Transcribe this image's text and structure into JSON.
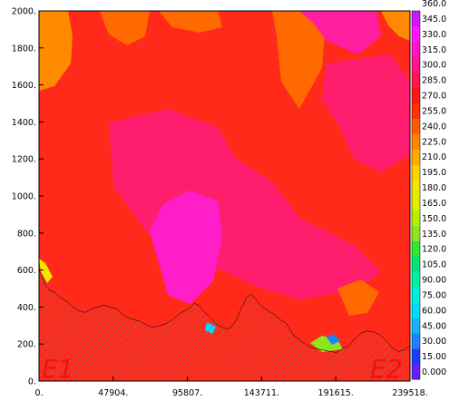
{
  "chart_data": {
    "type": "heatmap",
    "title": "",
    "xlabel": "",
    "ylabel": "",
    "x_ticks": [
      "0.",
      "47904.",
      "95807.",
      "143711.",
      "191615.",
      "239518."
    ],
    "x_tick_values": [
      0,
      47904,
      95807,
      143711,
      191615,
      239518
    ],
    "y_ticks": [
      "0.",
      "200.",
      "400.",
      "600.",
      "800.",
      "1000.",
      "1200.",
      "1400.",
      "1600.",
      "1800.",
      "2000."
    ],
    "y_tick_values": [
      0,
      200,
      400,
      600,
      800,
      1000,
      1200,
      1400,
      1600,
      1800,
      2000
    ],
    "xlim": [
      0,
      239518
    ],
    "ylim": [
      0,
      2000
    ],
    "colorbar": {
      "labels": [
        "0.000",
        "15.00",
        "30.00",
        "45.00",
        "60.00",
        "75.00",
        "90.00",
        "105.0",
        "120.0",
        "135.0",
        "150.0",
        "165.0",
        "180.0",
        "195.0",
        "210.0",
        "225.0",
        "240.0",
        "255.0",
        "270.0",
        "285.0",
        "300.0",
        "315.0",
        "330.0",
        "345.0",
        "360.0"
      ],
      "values": [
        0,
        15,
        30,
        45,
        60,
        75,
        90,
        105,
        120,
        135,
        150,
        165,
        180,
        195,
        210,
        225,
        240,
        255,
        270,
        285,
        300,
        315,
        330,
        345,
        360
      ],
      "colors": [
        "#6a1eff",
        "#1e3cff",
        "#1e82ff",
        "#14b4ff",
        "#00dcff",
        "#00f0dc",
        "#00f0a0",
        "#00e678",
        "#32e632",
        "#8ce61e",
        "#b4f000",
        "#dcf000",
        "#f0e600",
        "#ffd200",
        "#ffaa00",
        "#ff8200",
        "#ff5a00",
        "#ff3200",
        "#ff1414",
        "#ff1450",
        "#ff148c",
        "#ff14c8",
        "#ff14ff",
        "#d214ff"
      ]
    },
    "terrain": {
      "x": [
        0,
        2000,
        4000,
        7000,
        10000,
        14000,
        18000,
        22000,
        26000,
        30000,
        34000,
        38000,
        42000,
        46000,
        50000,
        54000,
        58000,
        62000,
        66000,
        70000,
        74000,
        78000,
        82000,
        86000,
        90000,
        94000,
        98000,
        100000,
        103000,
        106000,
        110000,
        114000,
        118000,
        122000,
        125000,
        128000,
        131000,
        134000,
        137000,
        140000,
        144000,
        148000,
        152000,
        156000,
        160000,
        164000,
        170000,
        176000,
        182000,
        188000,
        192000,
        196000,
        200000,
        204000,
        208000,
        212000,
        216000,
        220000,
        224000,
        228000,
        232000,
        236000,
        239518
      ],
      "y": [
        600,
        570,
        520,
        490,
        480,
        450,
        430,
        400,
        380,
        370,
        390,
        400,
        410,
        400,
        390,
        360,
        340,
        330,
        320,
        300,
        290,
        300,
        310,
        330,
        360,
        380,
        400,
        420,
        410,
        380,
        350,
        310,
        290,
        280,
        300,
        340,
        400,
        450,
        470,
        440,
        400,
        380,
        360,
        330,
        310,
        250,
        210,
        180,
        170,
        160,
        155,
        175,
        190,
        230,
        260,
        270,
        265,
        250,
        220,
        180,
        160,
        170,
        190
      ]
    },
    "annotations": [
      "E1",
      "E2"
    ]
  }
}
